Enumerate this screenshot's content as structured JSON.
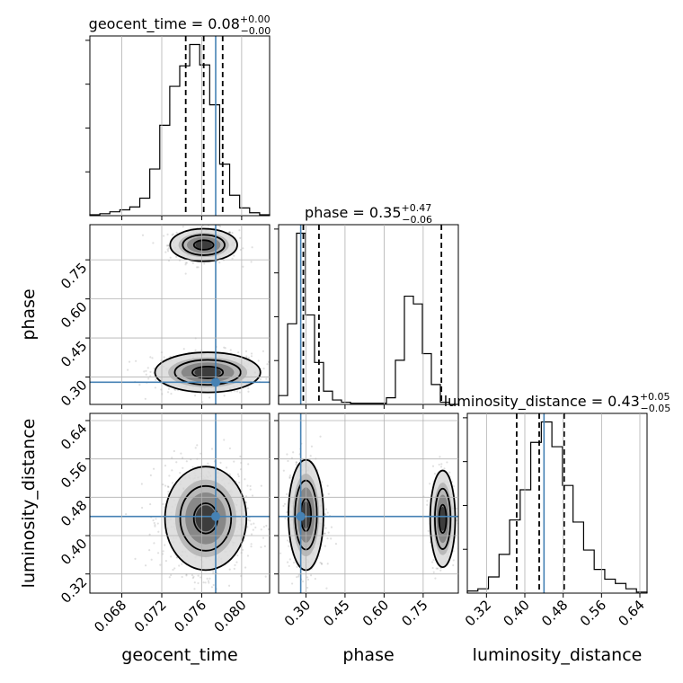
{
  "chart_data": {
    "type": "corner",
    "parameters": [
      {
        "key": "geocent_time",
        "label": "geocent_time",
        "title": "geocent_time = 0.08",
        "sup": "+0.00",
        "sub": "−0.00",
        "range": [
          0.0648,
          0.0828
        ],
        "ticks": [
          "0.068",
          "0.072",
          "0.076",
          "0.080"
        ],
        "tick_values": [
          0.068,
          0.072,
          0.076,
          0.08
        ],
        "truth": 0.0774,
        "quantiles": [
          0.0744,
          0.0762,
          0.0781
        ],
        "hist_counts": [
          1,
          2,
          4,
          6,
          9,
          18,
          48,
          93,
          133,
          154,
          176,
          155,
          114,
          53,
          21,
          8,
          3,
          1
        ]
      },
      {
        "key": "phase",
        "label": "phase",
        "title": "phase = 0.35",
        "sup": "+0.47",
        "sub": "−0.06",
        "range": [
          0.195,
          0.885
        ],
        "ticks": [
          "0.30",
          "0.45",
          "0.60",
          "0.75"
        ],
        "tick_values": [
          0.3,
          0.45,
          0.6,
          0.75
        ],
        "truth": 0.28,
        "quantiles": [
          0.29,
          0.35,
          0.82
        ],
        "hist_counts": [
          8,
          73,
          155,
          81,
          38,
          12,
          4,
          2,
          1,
          1,
          1,
          1,
          6,
          40,
          98,
          91,
          46,
          18,
          2,
          0
        ]
      },
      {
        "key": "luminosity_distance",
        "label": "luminosity_distance",
        "title": "luminosity_distance = 0.43",
        "sup": "+0.05",
        "sub": "−0.05",
        "range": [
          0.28,
          0.655
        ],
        "ticks": [
          "0.32",
          "0.40",
          "0.48",
          "0.56",
          "0.64"
        ],
        "tick_values": [
          0.32,
          0.4,
          0.48,
          0.56,
          0.64
        ],
        "truth": 0.44,
        "quantiles": [
          0.383,
          0.43,
          0.482
        ],
        "hist_counts": [
          2,
          4,
          15,
          36,
          68,
          96,
          140,
          159,
          136,
          100,
          66,
          40,
          22,
          13,
          9,
          4,
          1
        ]
      }
    ],
    "pair_modes": {
      "phase_vs_geocent_time": [
        {
          "cx": 0.0762,
          "cy": 0.807,
          "sx": 0.0014,
          "sy": 0.026,
          "w": 0.4
        },
        {
          "cx": 0.0766,
          "cy": 0.318,
          "sx": 0.0022,
          "sy": 0.032,
          "w": 0.6
        }
      ],
      "luminosity_distance_vs_geocent_time": [
        {
          "cx": 0.0764,
          "cy": 0.436,
          "sx": 0.0017,
          "sy": 0.045,
          "w": 1.0
        }
      ],
      "luminosity_distance_vs_phase": [
        {
          "cx": 0.3,
          "cy": 0.443,
          "sx": 0.028,
          "sy": 0.048,
          "w": 0.65
        },
        {
          "cx": 0.825,
          "cy": 0.435,
          "sx": 0.02,
          "sy": 0.042,
          "w": 0.35
        }
      ]
    },
    "grid": true,
    "truth_color": "#4682b4"
  }
}
